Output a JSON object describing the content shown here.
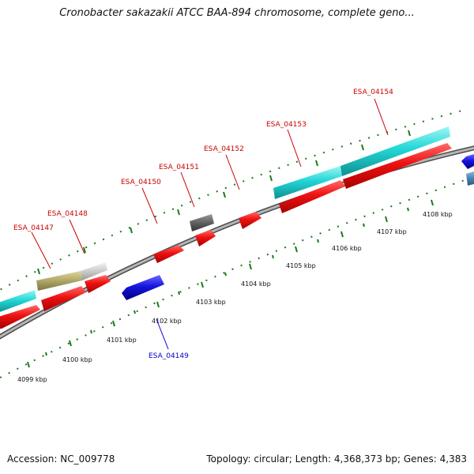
{
  "title": "Cronobacter sakazakii ATCC BAA-894 chromosome, complete geno...",
  "footer": {
    "accession": "Accession: NC_009778",
    "summary": "Topology: circular; Length: 4,368,373 bp; Genes: 4,383"
  },
  "ruler_labels": [
    "4099 kbp",
    "4100 kbp",
    "4101 kbp",
    "4102 kbp",
    "4103 kbp",
    "4104 kbp",
    "4105 kbp",
    "4106 kbp",
    "4107 kbp",
    "4108 kbp"
  ],
  "colors": {
    "backbone": "#9a9a9a",
    "tick": "#1a7a1a",
    "label_forward": "#cc0000",
    "label_reverse": "#0000cc",
    "gene_red": "#ee1111",
    "gene_blue": "#1515e0",
    "gene_cyan": "#22d6d6",
    "gene_olive": "#b2ab6a",
    "gene_lightgray": "#cfcfcf",
    "gene_darkgray": "#666666",
    "gene_steelblue": "#4f86b4"
  },
  "gene_labels": [
    {
      "name": "ESA_04147",
      "strand": "forward"
    },
    {
      "name": "ESA_04148",
      "strand": "forward"
    },
    {
      "name": "ESA_04150",
      "strand": "forward"
    },
    {
      "name": "ESA_04151",
      "strand": "forward"
    },
    {
      "name": "ESA_04152",
      "strand": "forward"
    },
    {
      "name": "ESA_04153",
      "strand": "forward"
    },
    {
      "name": "ESA_04154",
      "strand": "forward"
    },
    {
      "name": "ESA_04149",
      "strand": "reverse"
    }
  ]
}
